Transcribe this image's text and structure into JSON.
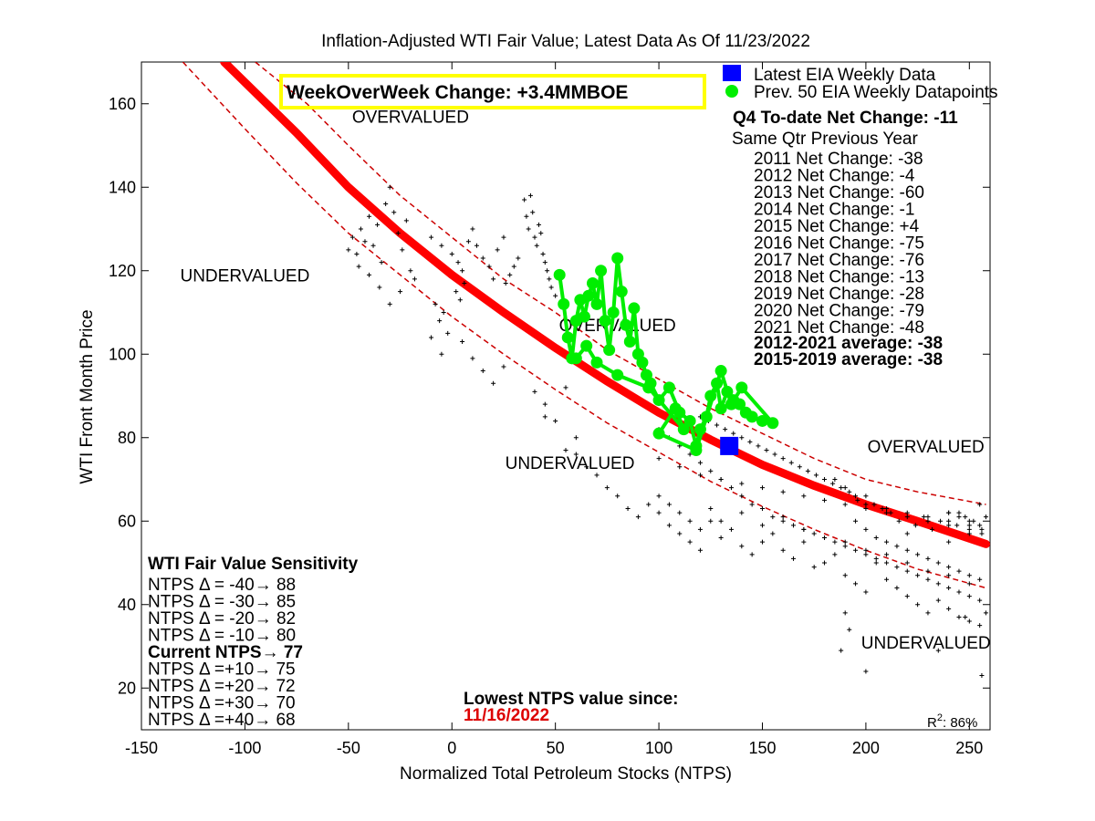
{
  "chart_data": {
    "type": "scatter",
    "title": "Inflation-Adjusted WTI Fair Value; Latest Data As Of 11/23/2022",
    "xlabel": "Normalized Total Petroleum Stocks (NTPS)",
    "ylabel": "WTI Front Month Price",
    "xlim": [
      -150,
      260
    ],
    "ylim": [
      10,
      170
    ],
    "xticks": [
      -150,
      -100,
      -50,
      0,
      50,
      100,
      150,
      200,
      250
    ],
    "yticks": [
      20,
      40,
      60,
      80,
      100,
      120,
      140,
      160
    ],
    "grid": false,
    "fair_value_curve": {
      "name": "Fair value",
      "color": "#ff0000",
      "x": [
        -110,
        -75,
        -50,
        -25,
        0,
        25,
        50,
        75,
        100,
        125,
        150,
        175,
        200,
        225,
        258
      ],
      "y": [
        170,
        153,
        140,
        129,
        119,
        110,
        101.5,
        93.5,
        86,
        79.5,
        73.5,
        68.5,
        64,
        60,
        54.5
      ]
    },
    "upper_band": {
      "name": "Upper band",
      "x": [
        -95,
        -70,
        -50,
        -25,
        0,
        25,
        50,
        75,
        100,
        125,
        150,
        175,
        200,
        225,
        258
      ],
      "y": [
        170,
        160,
        150,
        138,
        128,
        118,
        110,
        101,
        94,
        87,
        81,
        75,
        70,
        67,
        64
      ]
    },
    "lower_band": {
      "name": "Lower band",
      "x": [
        -130,
        -100,
        -75,
        -50,
        -25,
        0,
        25,
        50,
        75,
        100,
        125,
        150,
        175,
        200,
        225,
        258
      ],
      "y": [
        170,
        154,
        141,
        129,
        119,
        109,
        100,
        91.5,
        83.5,
        76.5,
        69.5,
        63.5,
        58,
        53,
        48.5,
        44
      ]
    },
    "historical_points": {
      "name": "Historical weekly data",
      "marker": "+",
      "x": [
        -50,
        -48,
        -46,
        -44,
        -45,
        -42,
        -40,
        -38,
        -36,
        -34,
        -32,
        -30,
        -28,
        -26,
        -24,
        -22,
        -20,
        -18,
        -40,
        -35,
        -30,
        -25,
        -10,
        -5,
        0,
        3,
        5,
        8,
        10,
        12,
        15,
        18,
        20,
        22,
        25,
        -8,
        -6,
        -4,
        -2,
        2,
        4,
        6,
        35,
        36,
        37,
        38,
        39,
        40,
        41,
        42,
        43,
        44,
        45,
        46,
        47,
        48,
        50,
        30,
        32,
        28,
        26,
        -10,
        -5,
        5,
        10,
        15,
        20,
        25,
        40,
        45,
        50,
        55,
        45,
        55,
        60,
        65,
        60,
        70,
        75,
        80,
        85,
        90,
        95,
        100,
        105,
        110,
        115,
        120,
        125,
        130,
        135,
        140,
        145,
        150,
        155,
        160,
        165,
        170,
        175,
        180,
        185,
        190,
        195,
        200,
        205,
        210,
        215,
        220,
        225,
        230,
        235,
        240,
        245,
        250,
        255,
        258,
        125,
        130,
        140,
        150,
        160,
        170,
        180,
        190,
        200,
        210,
        220,
        230,
        240,
        250,
        100,
        105,
        110,
        115,
        120,
        100,
        110,
        120,
        130,
        140,
        150,
        160,
        170,
        180,
        190,
        200,
        210,
        220,
        230,
        240,
        250,
        256,
        252,
        248,
        244,
        240,
        236,
        232,
        228,
        224,
        220,
        216,
        212,
        208,
        204,
        200,
        196,
        192,
        188,
        184,
        180,
        176,
        172,
        168,
        164,
        160,
        156,
        152,
        148,
        144,
        140,
        136,
        132,
        128,
        124,
        120,
        100,
        105,
        110,
        115,
        120,
        125,
        130,
        135,
        140,
        145,
        150,
        155,
        160,
        165,
        170,
        175,
        180,
        185,
        190,
        195,
        200,
        205,
        210,
        215,
        220,
        225,
        230,
        235,
        240,
        245,
        250,
        255,
        195,
        200,
        205,
        210,
        215,
        220,
        225,
        230,
        235,
        240,
        245,
        250,
        255,
        240,
        245,
        250,
        255,
        185,
        190,
        195,
        200,
        210,
        220,
        230,
        240,
        250,
        256,
        240,
        250,
        245,
        255,
        258,
        190,
        188,
        192,
        200,
        235,
        248,
        256
      ],
      "y": [
        125,
        128,
        124,
        130,
        121,
        127,
        133,
        126,
        131,
        122,
        136,
        140,
        134,
        129,
        125,
        132,
        120,
        118,
        119,
        116,
        112,
        115,
        128,
        126,
        124,
        122,
        120,
        127,
        130,
        126,
        123,
        121,
        118,
        125,
        128,
        112,
        108,
        110,
        105,
        115,
        113,
        117,
        137,
        133,
        130,
        138,
        134,
        128,
        126,
        131,
        129,
        124,
        122,
        120,
        118,
        116,
        114,
        121,
        123,
        119,
        117,
        104,
        100,
        103,
        99,
        96,
        93,
        97,
        91,
        88,
        84,
        92,
        85,
        77,
        80,
        73,
        76,
        71,
        68,
        66,
        63,
        61,
        64,
        62,
        59,
        57,
        55,
        53,
        60,
        56,
        58,
        54,
        52,
        55,
        57,
        53,
        51,
        55,
        49,
        50,
        52,
        47,
        45,
        43,
        50,
        46,
        44,
        42,
        40,
        38,
        41,
        39,
        37,
        36,
        35,
        38,
        63,
        60,
        62,
        59,
        61,
        58,
        56,
        55,
        53,
        52,
        50,
        48,
        47,
        45,
        66,
        64,
        62,
        60,
        58,
        75,
        73,
        71,
        70,
        69,
        68,
        67,
        66,
        65,
        64,
        63,
        62,
        61,
        60,
        59,
        58,
        57,
        60,
        61,
        59,
        62,
        60,
        58,
        61,
        59,
        57,
        60,
        62,
        63,
        64,
        66,
        65,
        67,
        68,
        69,
        70,
        71,
        72,
        73,
        74,
        75,
        76,
        77,
        78,
        79,
        80,
        81,
        82,
        83,
        84,
        85,
        82,
        80,
        78,
        76,
        74,
        72,
        70,
        68,
        66,
        64,
        63,
        61,
        60,
        59,
        58,
        57,
        56,
        55,
        54,
        53,
        52,
        51,
        50,
        49,
        48,
        47,
        46,
        45,
        44,
        43,
        42,
        41,
        60,
        58,
        56,
        55,
        54,
        53,
        52,
        51,
        50,
        49,
        48,
        47,
        46,
        62,
        61,
        60,
        59,
        70,
        68,
        66,
        64,
        63,
        62,
        61,
        60,
        59,
        58,
        55,
        57,
        62,
        64,
        61,
        38,
        29,
        34,
        24,
        29,
        37,
        23
      ]
    },
    "recent_points": {
      "name": "Prev. 50 EIA Weekly Datapoints",
      "color": "#00ee00",
      "x": [
        52,
        54,
        56,
        58,
        60,
        62,
        64,
        66,
        68,
        70,
        72,
        74,
        76,
        78,
        80,
        82,
        84,
        86,
        88,
        90,
        92,
        94,
        96,
        100,
        105,
        110,
        115,
        118,
        120,
        123,
        125,
        128,
        130,
        133,
        136,
        139,
        142,
        145,
        150,
        155,
        140,
        135,
        130,
        118,
        100,
        108,
        112,
        95,
        80,
        70,
        65,
        60
      ],
      "y": [
        119,
        112,
        104,
        99,
        108,
        113,
        109,
        114,
        117,
        112,
        120,
        108,
        101,
        110,
        123,
        115,
        107,
        103,
        111,
        100,
        98,
        95,
        93,
        89,
        92,
        86,
        84,
        78,
        82,
        85,
        90,
        93,
        87,
        91,
        89,
        88,
        86,
        85,
        84,
        83.5,
        92,
        88,
        96,
        77,
        81,
        87,
        82,
        92,
        95,
        98,
        102,
        99
      ]
    },
    "latest_point": {
      "name": "Latest EIA Weekly Data",
      "color": "#0000ff",
      "x": 134,
      "y": 78
    },
    "zone_labels": [
      {
        "text": "OVERVALUED",
        "x": -20,
        "y": 157
      },
      {
        "text": "UNDERVALUED",
        "x": -100,
        "y": 119
      },
      {
        "text": "OVERVALUED",
        "x": 80,
        "y": 107
      },
      {
        "text": "UNDERVALUED",
        "x": 57,
        "y": 74
      },
      {
        "text": "OVERVALUED",
        "x": 229,
        "y": 78
      },
      {
        "text": "UNDERVALUED",
        "x": 229,
        "y": 31
      }
    ],
    "r_squared_label": "86%",
    "r_squared_prefix": "R",
    "r_squared_exp": "2",
    "r_squared_suffix": ": "
  },
  "headline_box": {
    "text": "WeekOverWeek Change: +3.4MMBOE",
    "border_color": "#ffff00"
  },
  "legend": {
    "latest": "Latest EIA Weekly Data",
    "prev": "Prev. 50 EIA Weekly Datapoints"
  },
  "qtr_stats": {
    "header": "Q4 To-date Net Change: -11",
    "subheader": "Same Qtr Previous Year",
    "rows": [
      "2011 Net Change: -38",
      "2012 Net Change: -4",
      "2013 Net Change: -60",
      "2014 Net Change: -1",
      "2015 Net Change: +4",
      "2016 Net Change: -75",
      "2017 Net Change: -76",
      "2018 Net Change: -13",
      "2019 Net Change: -28",
      "2020 Net Change: -79",
      "2021 Net Change: -48"
    ],
    "avg1": "2012-2021 average: -38",
    "avg2": "2015-2019 average: -38"
  },
  "sensitivity": {
    "title": "WTI Fair Value Sensitivity",
    "rows_before": [
      "NTPS Δ = -40→ 88",
      "NTPS Δ = -30→ 85",
      "NTPS Δ = -20→ 82",
      "NTPS Δ = -10→ 80"
    ],
    "current": "Current NTPS→ 77",
    "rows_after": [
      "NTPS Δ =+10→ 75",
      "NTPS Δ =+20→ 72",
      "NTPS Δ =+30→ 70",
      "NTPS Δ =+40→ 68"
    ]
  },
  "lowest": {
    "label": "Lowest NTPS value since:",
    "date": "11/16/2022",
    "date_color": "#dd0000"
  }
}
